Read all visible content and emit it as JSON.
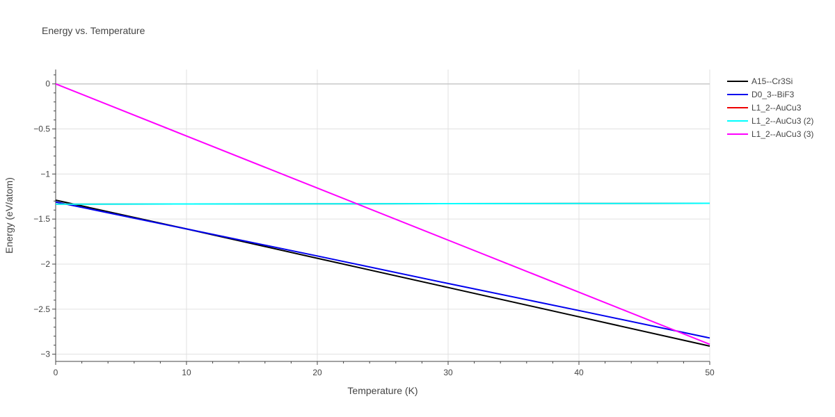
{
  "chart_data": {
    "type": "line",
    "title": "Energy vs. Temperature",
    "xlabel": "Temperature (K)",
    "ylabel": "Energy (eV/atom)",
    "xlim": [
      0,
      50
    ],
    "ylim": [
      -3.08,
      0.16
    ],
    "x_ticks": [
      0,
      10,
      20,
      30,
      40,
      50
    ],
    "x_tick_labels": [
      "0",
      "10",
      "20",
      "30",
      "40",
      "50"
    ],
    "y_ticks": [
      0,
      -0.5,
      -1,
      -1.5,
      -2,
      -2.5,
      -3
    ],
    "y_tick_labels": [
      "0",
      "−0.5",
      "−1",
      "−1.5",
      "−2",
      "−2.5",
      "−3"
    ],
    "grid": true,
    "legend_position": "right",
    "series": [
      {
        "name": "A15--Cr3Si",
        "color": "#000000",
        "x": [
          0,
          10,
          20,
          30,
          40,
          50
        ],
        "y": [
          -1.29,
          -1.61,
          -1.935,
          -2.26,
          -2.585,
          -2.91
        ]
      },
      {
        "name": "D0_3--BiF3",
        "color": "#0000ee",
        "x": [
          0,
          10,
          20,
          30,
          40,
          50
        ],
        "y": [
          -1.31,
          -1.61,
          -1.91,
          -2.215,
          -2.515,
          -2.82
        ]
      },
      {
        "name": "L1_2--AuCu3",
        "color": "#ee0000",
        "x": [
          0,
          10,
          20,
          30,
          40,
          50
        ],
        "y": [
          -1.335,
          -1.333,
          -1.331,
          -1.329,
          -1.327,
          -1.325
        ]
      },
      {
        "name": "L1_2--AuCu3 (2)",
        "color": "#00ffff",
        "x": [
          0,
          10,
          20,
          30,
          40,
          50
        ],
        "y": [
          -1.335,
          -1.333,
          -1.331,
          -1.329,
          -1.327,
          -1.325
        ]
      },
      {
        "name": "L1_2--AuCu3 (3)",
        "color": "#ff00ff",
        "x": [
          0,
          10,
          20,
          30,
          40,
          50
        ],
        "y": [
          0,
          -0.578,
          -1.156,
          -1.734,
          -2.312,
          -2.89
        ]
      }
    ]
  }
}
